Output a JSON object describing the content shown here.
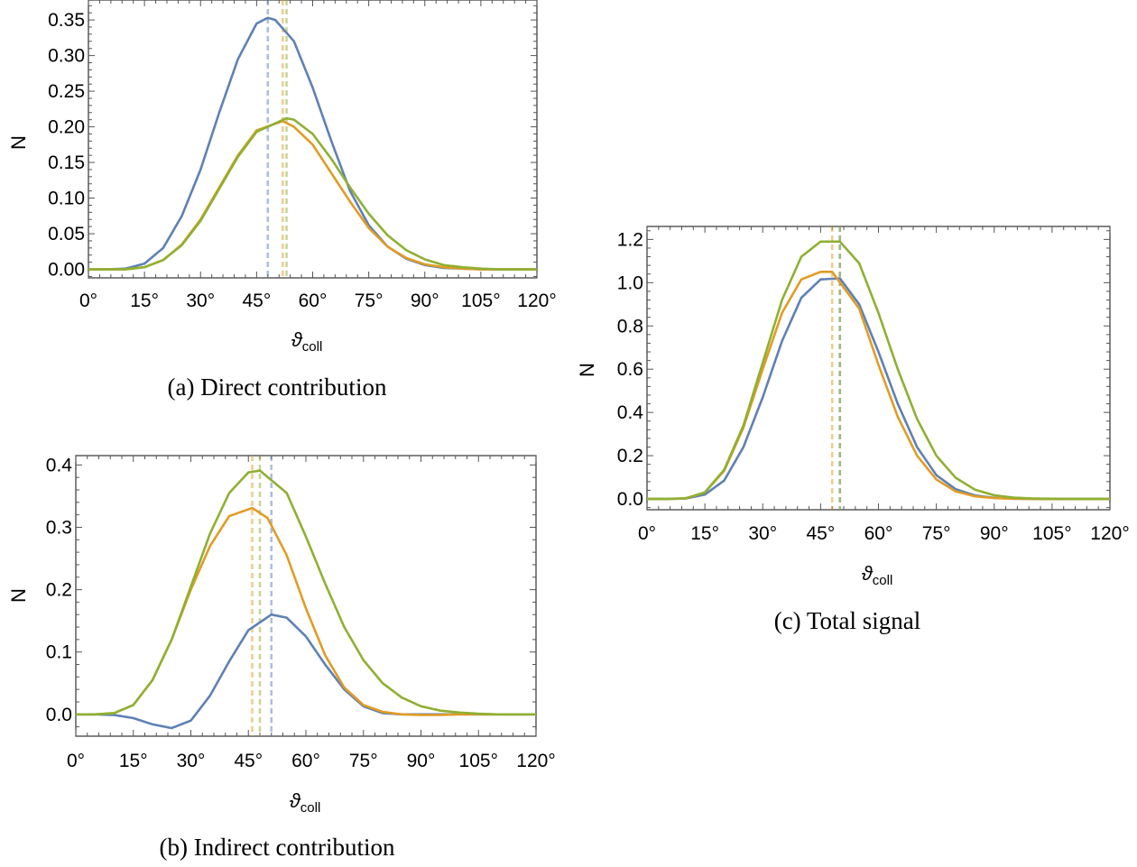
{
  "colors": {
    "blue": "#5e81b5",
    "orange": "#e19c24",
    "green": "#8fb032"
  },
  "chart_data": [
    {
      "id": "a",
      "type": "line",
      "caption": "(a) Direct contribution",
      "xlabel": "ϑ",
      "xlabel_sub": "coll",
      "ylabel": "N",
      "xlim": [
        0,
        120
      ],
      "ylim": [
        -0.012,
        0.378
      ],
      "x_ticks": [
        0,
        15,
        30,
        45,
        60,
        75,
        90,
        105,
        120
      ],
      "x_tick_labels": [
        "0°",
        "15°",
        "30°",
        "45°",
        "60°",
        "75°",
        "90°",
        "105°",
        "120°"
      ],
      "y_ticks": [
        0,
        0.05,
        0.1,
        0.15,
        0.2,
        0.25,
        0.3,
        0.35
      ],
      "y_tick_labels": [
        "0.00",
        "0.05",
        "0.10",
        "0.15",
        "0.20",
        "0.25",
        "0.30",
        "0.35"
      ],
      "series": [
        {
          "color": "blue",
          "peak_x": 48,
          "x": [
            0,
            5,
            10,
            15,
            20,
            25,
            30,
            35,
            40,
            45,
            48,
            50,
            55,
            60,
            65,
            70,
            75,
            80,
            85,
            90,
            95,
            100,
            105,
            110,
            115,
            120
          ],
          "y": [
            0,
            0,
            0.001,
            0.008,
            0.03,
            0.075,
            0.14,
            0.22,
            0.295,
            0.345,
            0.353,
            0.35,
            0.32,
            0.255,
            0.18,
            0.11,
            0.062,
            0.032,
            0.015,
            0.006,
            0.002,
            0.001,
            0,
            0,
            0,
            0
          ]
        },
        {
          "color": "orange",
          "peak_x": 52,
          "x": [
            0,
            5,
            10,
            15,
            20,
            25,
            30,
            35,
            40,
            45,
            52,
            55,
            60,
            65,
            70,
            75,
            80,
            85,
            90,
            95,
            100,
            105,
            110,
            115,
            120
          ],
          "y": [
            0,
            0,
            0,
            0.003,
            0.013,
            0.035,
            0.07,
            0.115,
            0.16,
            0.195,
            0.208,
            0.2,
            0.175,
            0.135,
            0.095,
            0.058,
            0.032,
            0.016,
            0.007,
            0.003,
            0.001,
            0,
            0,
            0,
            0
          ]
        },
        {
          "color": "green",
          "peak_x": 53,
          "x": [
            0,
            5,
            10,
            15,
            20,
            25,
            30,
            35,
            40,
            45,
            53,
            55,
            60,
            65,
            70,
            75,
            80,
            85,
            90,
            95,
            100,
            105,
            110,
            115,
            120
          ],
          "y": [
            0,
            0,
            0,
            0.003,
            0.013,
            0.034,
            0.068,
            0.113,
            0.158,
            0.193,
            0.212,
            0.21,
            0.19,
            0.155,
            0.115,
            0.078,
            0.048,
            0.027,
            0.014,
            0.006,
            0.003,
            0.001,
            0,
            0,
            0
          ]
        }
      ]
    },
    {
      "id": "b",
      "type": "line",
      "caption": "(b) Indirect contribution",
      "xlabel": "ϑ",
      "xlabel_sub": "coll",
      "ylabel": "N",
      "xlim": [
        0,
        120
      ],
      "ylim": [
        -0.035,
        0.415
      ],
      "x_ticks": [
        0,
        15,
        30,
        45,
        60,
        75,
        90,
        105,
        120
      ],
      "x_tick_labels": [
        "0°",
        "15°",
        "30°",
        "45°",
        "60°",
        "75°",
        "90°",
        "105°",
        "120°"
      ],
      "y_ticks": [
        0,
        0.1,
        0.2,
        0.3,
        0.4
      ],
      "y_tick_labels": [
        "0.0",
        "0.1",
        "0.2",
        "0.3",
        "0.4"
      ],
      "series": [
        {
          "color": "blue",
          "peak_x": 51,
          "x": [
            0,
            5,
            10,
            15,
            20,
            25,
            30,
            35,
            40,
            45,
            51,
            55,
            60,
            65,
            70,
            75,
            80,
            85,
            90,
            95,
            100,
            105,
            110,
            115,
            120
          ],
          "y": [
            0,
            0,
            -0.001,
            -0.006,
            -0.016,
            -0.022,
            -0.01,
            0.03,
            0.085,
            0.135,
            0.16,
            0.155,
            0.125,
            0.08,
            0.04,
            0.013,
            0.002,
            0,
            0,
            0,
            0,
            0,
            0,
            0,
            0
          ]
        },
        {
          "color": "orange",
          "peak_x": 46,
          "x": [
            0,
            5,
            10,
            15,
            20,
            25,
            30,
            35,
            40,
            46,
            50,
            55,
            60,
            65,
            70,
            75,
            80,
            85,
            90,
            95,
            100,
            105,
            110,
            115,
            120
          ],
          "y": [
            0,
            0,
            0.002,
            0.015,
            0.055,
            0.12,
            0.2,
            0.27,
            0.318,
            0.331,
            0.315,
            0.255,
            0.17,
            0.095,
            0.043,
            0.015,
            0.004,
            0,
            -0.001,
            -0.001,
            0,
            0,
            0,
            0,
            0
          ]
        },
        {
          "color": "green",
          "peak_x": 48,
          "x": [
            0,
            5,
            10,
            15,
            20,
            25,
            30,
            35,
            40,
            45,
            48,
            55,
            60,
            65,
            70,
            75,
            80,
            85,
            90,
            95,
            100,
            105,
            110,
            115,
            120
          ],
          "y": [
            0,
            0,
            0.002,
            0.015,
            0.055,
            0.12,
            0.205,
            0.29,
            0.355,
            0.388,
            0.391,
            0.355,
            0.285,
            0.21,
            0.14,
            0.087,
            0.05,
            0.027,
            0.013,
            0.006,
            0.003,
            0.001,
            0,
            0,
            0
          ]
        }
      ]
    },
    {
      "id": "c",
      "type": "line",
      "caption": "(c) Total signal",
      "xlabel": "ϑ",
      "xlabel_sub": "coll",
      "ylabel": "N",
      "xlim": [
        0,
        120
      ],
      "ylim": [
        -0.05,
        1.26
      ],
      "x_ticks": [
        0,
        15,
        30,
        45,
        60,
        75,
        90,
        105,
        120
      ],
      "x_tick_labels": [
        "0°",
        "15°",
        "30°",
        "45°",
        "60°",
        "75°",
        "90°",
        "105°",
        "120°"
      ],
      "y_ticks": [
        0,
        0.2,
        0.4,
        0.6,
        0.8,
        1.0,
        1.2
      ],
      "y_tick_labels": [
        "0.0",
        "0.2",
        "0.4",
        "0.6",
        "0.8",
        "1.0",
        "1.2"
      ],
      "series": [
        {
          "color": "blue",
          "peak_x": 50,
          "x": [
            0,
            5,
            10,
            15,
            20,
            25,
            30,
            35,
            40,
            45,
            50,
            55,
            60,
            65,
            70,
            75,
            80,
            85,
            90,
            95,
            100,
            105,
            110,
            115,
            120
          ],
          "y": [
            0,
            0,
            0.002,
            0.02,
            0.085,
            0.24,
            0.47,
            0.73,
            0.93,
            1.015,
            1.02,
            0.9,
            0.68,
            0.44,
            0.24,
            0.11,
            0.045,
            0.016,
            0.005,
            0.001,
            0,
            0,
            0,
            0,
            0
          ]
        },
        {
          "color": "orange",
          "peak_x": 48,
          "x": [
            0,
            5,
            10,
            15,
            20,
            25,
            30,
            35,
            40,
            45,
            48,
            55,
            60,
            65,
            70,
            75,
            80,
            85,
            90,
            95,
            100,
            105,
            110,
            115,
            120
          ],
          "y": [
            0,
            0,
            0.002,
            0.03,
            0.13,
            0.33,
            0.6,
            0.86,
            1.015,
            1.05,
            1.05,
            0.88,
            0.62,
            0.38,
            0.2,
            0.09,
            0.035,
            0.012,
            0.004,
            0.001,
            0,
            0,
            0,
            0,
            0
          ]
        },
        {
          "color": "green",
          "peak_x": 50,
          "x": [
            0,
            5,
            10,
            15,
            20,
            25,
            30,
            35,
            40,
            45,
            50,
            55,
            60,
            65,
            70,
            75,
            80,
            85,
            90,
            95,
            100,
            105,
            110,
            115,
            120
          ],
          "y": [
            0,
            0,
            0.003,
            0.03,
            0.135,
            0.34,
            0.63,
            0.92,
            1.12,
            1.19,
            1.19,
            1.09,
            0.86,
            0.6,
            0.37,
            0.2,
            0.098,
            0.043,
            0.017,
            0.006,
            0.002,
            0.001,
            0,
            0,
            0
          ]
        }
      ]
    }
  ]
}
